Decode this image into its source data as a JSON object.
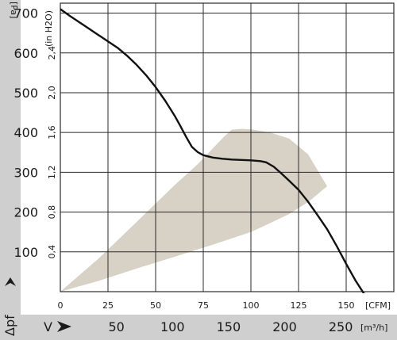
{
  "chart_data": {
    "type": "line",
    "title": "",
    "y_axis_left": {
      "symbol": "Δpf",
      "unit": "[Pa]",
      "ticks": [
        100,
        200,
        300,
        400,
        500,
        600,
        700
      ],
      "ylim": [
        0,
        725
      ]
    },
    "y_axis_secondary": {
      "unit": "(in H2O)",
      "ticks": [
        "0,4",
        "0,8",
        "1,2",
        "1,6",
        "2,0",
        "2,4"
      ],
      "tick_values_pa": [
        100,
        200,
        300,
        400,
        500,
        600
      ]
    },
    "x_axis_primary": {
      "unit": "[CFM]",
      "ticks": [
        "0",
        "25",
        "50",
        "75",
        "100",
        "125",
        "150"
      ],
      "tick_values": [
        0,
        25,
        50,
        75,
        100,
        125,
        150
      ],
      "xlim": [
        0,
        175
      ]
    },
    "x_axis_secondary": {
      "symbol": "V",
      "unit": "[m³/h]",
      "ticks": [
        "50",
        "100",
        "150",
        "200",
        "250"
      ],
      "tick_values_cfm": [
        29.43,
        58.86,
        88.29,
        117.72,
        147.15
      ]
    },
    "grid": true,
    "series": [
      {
        "kind": "curve",
        "x": [
          0,
          5,
          10,
          15,
          20,
          25,
          30,
          35,
          40,
          45,
          50,
          55,
          60,
          63,
          66,
          69,
          72,
          75,
          80,
          85,
          90,
          95,
          100,
          105,
          108,
          112,
          116,
          120,
          125,
          130,
          135,
          140,
          145,
          150,
          155,
          160
        ],
        "y": [
          710,
          693,
          677,
          661,
          645,
          629,
          613,
          593,
          570,
          544,
          514,
          480,
          442,
          416,
          389,
          364,
          351,
          343,
          337,
          334,
          332,
          331,
          330,
          328,
          325,
          314,
          297,
          279,
          256,
          226,
          192,
          157,
          115,
          70,
          27,
          -10
        ]
      }
    ],
    "operating_zone": {
      "color": "#d8d1c6",
      "upper": {
        "x": [
          0,
          20,
          40,
          60,
          72,
          80,
          86,
          90,
          95,
          100,
          110,
          120,
          130,
          140
        ],
        "y": [
          0,
          83,
          175,
          268,
          320,
          360,
          390,
          407,
          409,
          408,
          400,
          385,
          345,
          265
        ]
      },
      "lower": {
        "x": [
          140,
          130,
          120,
          110,
          100,
          80,
          60,
          40,
          20,
          0
        ],
        "y": [
          265,
          225,
          195,
          172,
          150,
          118,
          88,
          58,
          27,
          0
        ]
      }
    }
  }
}
